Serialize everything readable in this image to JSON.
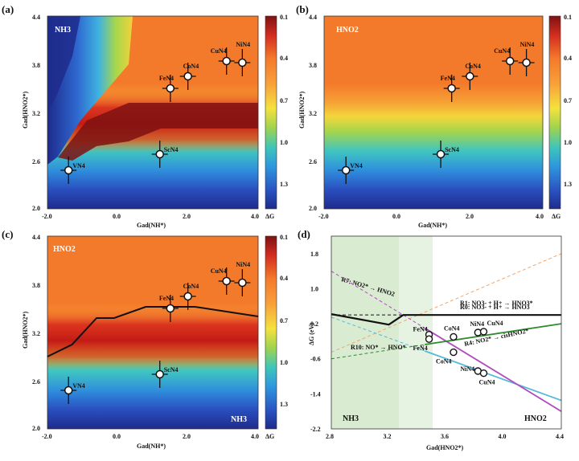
{
  "colors": {
    "bg": "#ffffff",
    "accent_orange": "#f47a2b",
    "dark_red": "#7e1212",
    "blue_dark": "#1e2b8c",
    "green_region": "#d8ecd2",
    "line_black": "#111111"
  },
  "colorbar": {
    "label": "ΔG",
    "ticks": [
      "0.1",
      "0.4",
      "0.7",
      "1.0",
      "1.3"
    ]
  },
  "chart_data": [
    {
      "panel": "(a)",
      "type": "heatmap",
      "region_labels": [
        "NH3"
      ],
      "x": {
        "label": "Gad(NH*)",
        "ticks": [
          "-2.0",
          "0.0",
          "2.0",
          "4.0"
        ],
        "range": [
          -2.0,
          4.0
        ]
      },
      "y": {
        "label": "Gad(HNO2*)",
        "ticks": [
          "2.0",
          "2.6",
          "3.2",
          "3.8",
          "4.4"
        ],
        "range": [
          2.0,
          4.4
        ]
      },
      "points": [
        {
          "name": "VN4",
          "x": -1.4,
          "y": 2.48
        },
        {
          "name": "ScN4",
          "x": 1.2,
          "y": 2.68
        },
        {
          "name": "FeN4",
          "x": 1.5,
          "y": 3.5
        },
        {
          "name": "CoN4",
          "x": 2.0,
          "y": 3.65
        },
        {
          "name": "CuN4",
          "x": 3.1,
          "y": 3.84
        },
        {
          "name": "NiN4",
          "x": 3.55,
          "y": 3.82
        }
      ]
    },
    {
      "panel": "(b)",
      "type": "heatmap",
      "region_labels": [
        "HNO2"
      ],
      "x": {
        "label": "Gad(NH*)",
        "ticks": [
          "-2.0",
          "0.0",
          "2.0",
          "4.0"
        ],
        "range": [
          -2.0,
          4.0
        ]
      },
      "y": {
        "label": "Gad(HNO2*)",
        "ticks": [
          "2.0",
          "2.6",
          "3.2",
          "3.8",
          "4.4"
        ],
        "range": [
          2.0,
          4.4
        ]
      },
      "points": [
        {
          "name": "VN4",
          "x": -1.4,
          "y": 2.48
        },
        {
          "name": "ScN4",
          "x": 1.2,
          "y": 2.68
        },
        {
          "name": "FeN4",
          "x": 1.5,
          "y": 3.5
        },
        {
          "name": "CoN4",
          "x": 2.0,
          "y": 3.65
        },
        {
          "name": "CuN4",
          "x": 3.1,
          "y": 3.84
        },
        {
          "name": "NiN4",
          "x": 3.55,
          "y": 3.82
        }
      ]
    },
    {
      "panel": "(c)",
      "type": "heatmap",
      "region_labels": [
        "HNO2",
        "NH3"
      ],
      "x": {
        "label": "Gad(NH*)",
        "ticks": [
          "-2.0",
          "0.0",
          "2.0",
          "4.0"
        ],
        "range": [
          -2.0,
          4.0
        ]
      },
      "y": {
        "label": "Gad(HNO2*)",
        "ticks": [
          "2.0",
          "2.6",
          "3.2",
          "3.8",
          "4.4"
        ],
        "range": [
          2.0,
          4.4
        ]
      },
      "boundary": [
        [
          -2.0,
          2.9
        ],
        [
          -1.3,
          3.05
        ],
        [
          -0.6,
          3.38
        ],
        [
          -0.1,
          3.38
        ],
        [
          0.8,
          3.52
        ],
        [
          2.2,
          3.52
        ],
        [
          4.0,
          3.4
        ]
      ],
      "points": [
        {
          "name": "VN4",
          "x": -1.4,
          "y": 2.48
        },
        {
          "name": "ScN4",
          "x": 1.2,
          "y": 2.68
        },
        {
          "name": "FeN4",
          "x": 1.5,
          "y": 3.5
        },
        {
          "name": "CoN4",
          "x": 2.0,
          "y": 3.65
        },
        {
          "name": "CuN4",
          "x": 3.1,
          "y": 3.84
        },
        {
          "name": "NiN4",
          "x": 3.55,
          "y": 3.82
        }
      ]
    },
    {
      "panel": "(d)",
      "type": "line",
      "xlabel": "Gad(HNO2*)",
      "ylabel": "ΔG (eV)",
      "xlim": [
        2.8,
        4.4
      ],
      "ylim": [
        -2.2,
        2.2
      ],
      "xticks": [
        "2.8",
        "3.2",
        "3.6",
        "4.0",
        "4.4"
      ],
      "yticks": [
        "1.8",
        "1.0",
        "0.2",
        "-0.6",
        "-1.4",
        "-2.2"
      ],
      "region_labels": [
        "NH3",
        "HNO2"
      ],
      "series": [
        {
          "name": "R0: NO3- + H+ → HNO3",
          "x": [
            2.8,
            4.4
          ],
          "y": [
            0.4,
            0.4
          ]
        },
        {
          "name": "R1: NO3- + H+ → HNO3*",
          "x": [
            2.8,
            4.4
          ],
          "y": [
            -0.45,
            1.8
          ]
        },
        {
          "name": "R4: NO2* → cisHNO2*",
          "x": [
            2.8,
            4.4
          ],
          "y": [
            0.35,
            -1.55
          ]
        },
        {
          "name": "R7: NO2* → HNO2",
          "x": [
            2.8,
            4.4
          ],
          "y": [
            1.4,
            -1.8
          ]
        },
        {
          "name": "R10: NO* → HNO*",
          "x": [
            2.8,
            4.4
          ],
          "y": [
            -0.6,
            0.2
          ]
        }
      ],
      "points": [
        {
          "name": "FeN4",
          "x": 3.48,
          "y": -0.05
        },
        {
          "name": "FeN4",
          "x": 3.48,
          "y": -0.15
        },
        {
          "name": "CoN4",
          "x": 3.65,
          "y": -0.1
        },
        {
          "name": "CoN4",
          "x": 3.65,
          "y": -0.45
        },
        {
          "name": "NiN4",
          "x": 3.82,
          "y": 0.0
        },
        {
          "name": "CuN4",
          "x": 3.86,
          "y": 0.02
        },
        {
          "name": "NiN4",
          "x": 3.82,
          "y": -0.88
        },
        {
          "name": "CuN4",
          "x": 3.86,
          "y": -0.93
        }
      ]
    }
  ]
}
